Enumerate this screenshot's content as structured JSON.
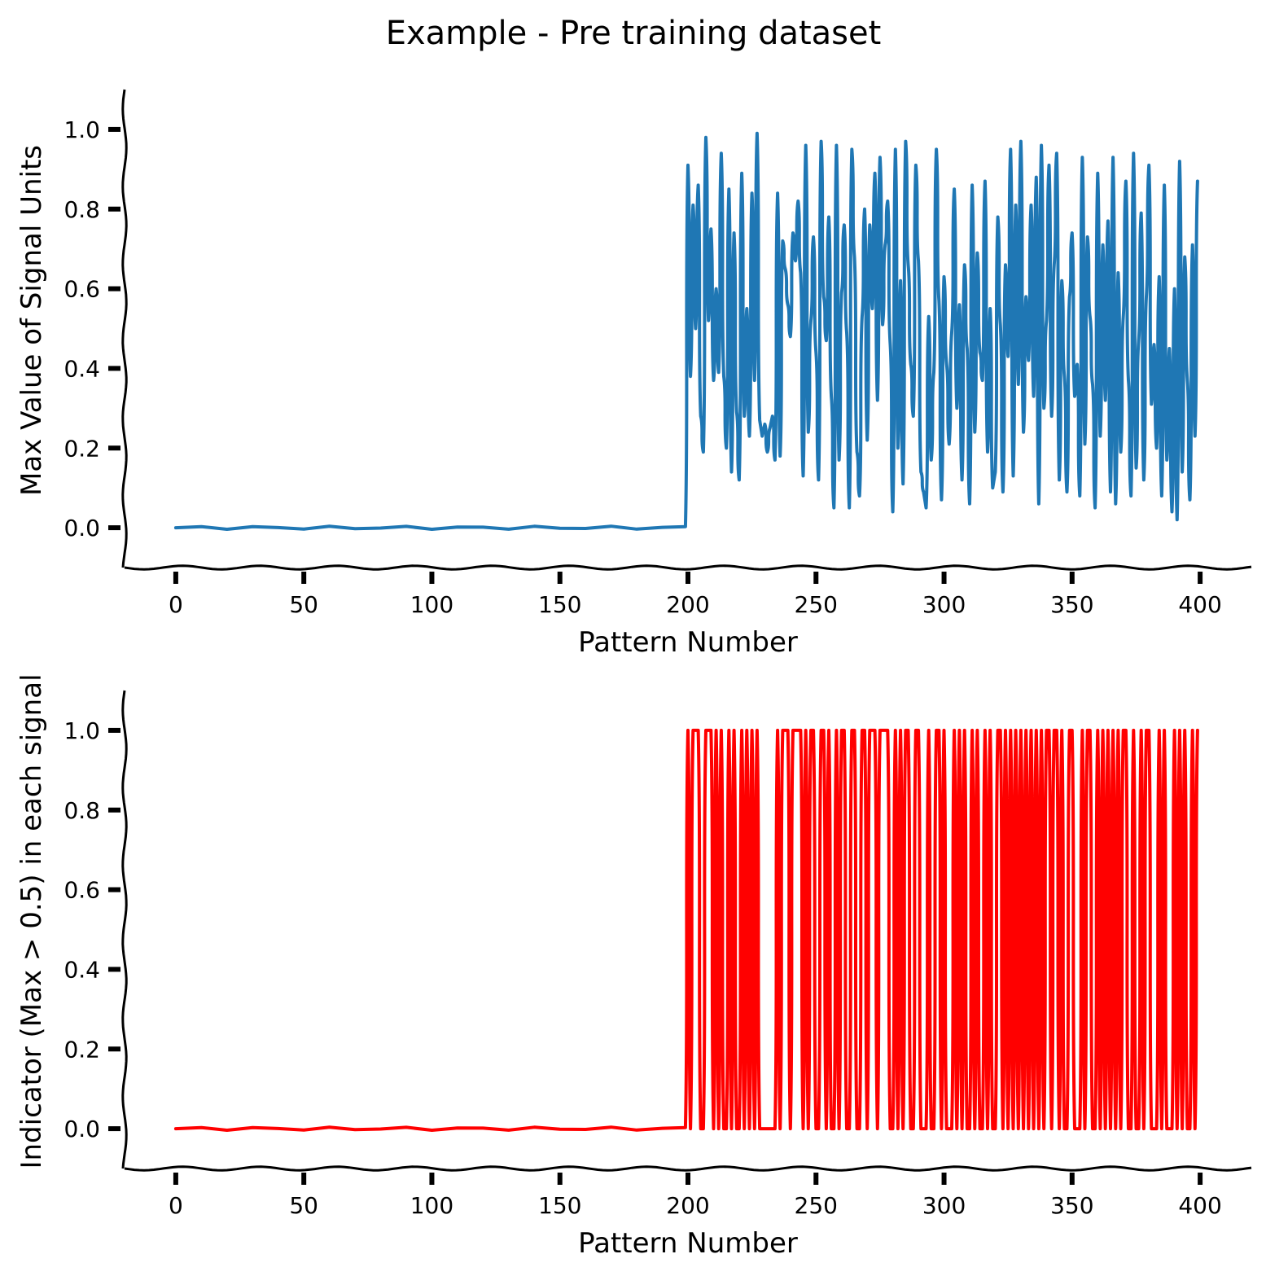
{
  "figure": {
    "title": "Example - Pre training dataset"
  },
  "chart_data": [
    {
      "type": "line",
      "title": "",
      "xlabel": "Pattern Number",
      "ylabel": "Max Value of Signal Units",
      "xlim": [
        -20,
        420
      ],
      "ylim": [
        -0.1,
        1.1
      ],
      "xticks": [
        0,
        50,
        100,
        150,
        200,
        250,
        300,
        350,
        400
      ],
      "yticks": [
        0.0,
        0.2,
        0.4,
        0.6,
        0.8,
        1.0
      ],
      "grid": false,
      "style": "xkcd",
      "series": [
        {
          "color": "#1f77b4",
          "x": [
            0,
            10,
            20,
            30,
            40,
            50,
            60,
            70,
            80,
            90,
            100,
            110,
            120,
            130,
            140,
            150,
            160,
            170,
            180,
            190,
            199,
            200,
            201,
            202,
            203,
            204,
            205,
            206,
            207,
            208,
            209,
            210,
            211,
            212,
            213,
            214,
            215,
            216,
            217,
            218,
            219,
            220,
            221,
            222,
            223,
            224,
            225,
            226,
            227,
            228,
            229,
            230,
            231,
            232,
            233,
            234,
            235,
            236,
            237,
            238,
            239,
            240,
            241,
            242,
            243,
            244,
            245,
            246,
            247,
            248,
            249,
            250,
            251,
            252,
            253,
            254,
            255,
            256,
            257,
            258,
            259,
            260,
            261,
            262,
            263,
            264,
            265,
            266,
            267,
            268,
            269,
            270,
            271,
            272,
            273,
            274,
            275,
            276,
            277,
            278,
            279,
            280,
            281,
            282,
            283,
            284,
            285,
            286,
            287,
            288,
            289,
            290,
            291,
            292,
            293,
            294,
            295,
            296,
            297,
            298,
            299,
            300,
            301,
            302,
            303,
            304,
            305,
            306,
            307,
            308,
            309,
            310,
            311,
            312,
            313,
            314,
            315,
            316,
            317,
            318,
            319,
            320,
            321,
            322,
            323,
            324,
            325,
            326,
            327,
            328,
            329,
            330,
            331,
            332,
            333,
            334,
            335,
            336,
            337,
            338,
            339,
            340,
            341,
            342,
            343,
            344,
            345,
            346,
            347,
            348,
            349,
            350,
            351,
            352,
            353,
            354,
            355,
            356,
            357,
            358,
            359,
            360,
            361,
            362,
            363,
            364,
            365,
            366,
            367,
            368,
            369,
            370,
            371,
            372,
            373,
            374,
            375,
            376,
            377,
            378,
            379,
            380,
            381,
            382,
            383,
            384,
            385,
            386,
            387,
            388,
            389,
            390,
            391,
            392,
            393,
            394,
            395,
            396,
            397,
            398,
            399
          ],
          "y": [
            0,
            0,
            0,
            0,
            0,
            0,
            0,
            0,
            0,
            0,
            0,
            0,
            0,
            0,
            0,
            0,
            0,
            0,
            0,
            0,
            0,
            0.91,
            0.38,
            0.81,
            0.5,
            0.86,
            0.28,
            0.19,
            0.98,
            0.52,
            0.75,
            0.37,
            0.6,
            0.39,
            0.94,
            0.38,
            0.2,
            0.85,
            0.14,
            0.74,
            0.29,
            0.12,
            0.89,
            0.28,
            0.55,
            0.23,
            0.84,
            0.37,
            0.99,
            0.27,
            0.23,
            0.26,
            0.19,
            0.25,
            0.28,
            0.17,
            0.84,
            0.18,
            0.72,
            0.65,
            0.56,
            0.48,
            0.74,
            0.67,
            0.82,
            0.64,
            0.13,
            0.96,
            0.24,
            0.52,
            0.73,
            0.44,
            0.12,
            0.97,
            0.58,
            0.47,
            0.78,
            0.33,
            0.05,
            0.96,
            0.17,
            0.59,
            0.76,
            0.49,
            0.05,
            0.95,
            0.68,
            0.19,
            0.08,
            0.53,
            0.8,
            0.22,
            0.76,
            0.55,
            0.89,
            0.32,
            0.93,
            0.51,
            0.71,
            0.82,
            0.46,
            0.04,
            0.95,
            0.2,
            0.62,
            0.11,
            0.97,
            0.66,
            0.41,
            0.28,
            0.91,
            0.67,
            0.14,
            0.09,
            0.05,
            0.53,
            0.17,
            0.39,
            0.95,
            0.57,
            0.07,
            0.63,
            0.41,
            0.21,
            0.49,
            0.85,
            0.3,
            0.56,
            0.12,
            0.66,
            0.45,
            0.06,
            0.86,
            0.24,
            0.69,
            0.44,
            0.37,
            0.87,
            0.19,
            0.55,
            0.1,
            0.14,
            0.78,
            0.51,
            0.09,
            0.66,
            0.43,
            0.95,
            0.13,
            0.81,
            0.36,
            0.97,
            0.24,
            0.58,
            0.42,
            0.81,
            0.33,
            0.88,
            0.06,
            0.96,
            0.3,
            0.52,
            0.91,
            0.28,
            0.66,
            0.94,
            0.12,
            0.62,
            0.38,
            0.09,
            0.58,
            0.74,
            0.33,
            0.41,
            0.08,
            0.93,
            0.21,
            0.73,
            0.53,
            0.36,
            0.05,
            0.89,
            0.23,
            0.71,
            0.32,
            0.77,
            0.09,
            0.93,
            0.06,
            0.64,
            0.19,
            0.53,
            0.87,
            0.37,
            0.08,
            0.94,
            0.15,
            0.47,
            0.79,
            0.12,
            0.58,
            0.91,
            0.31,
            0.46,
            0.2,
            0.63,
            0.08,
            0.86,
            0.17,
            0.45,
            0.04,
            0.6,
            0.02,
            0.92,
            0.14,
            0.68,
            0.37,
            0.07,
            0.71,
            0.23,
            0.87
          ]
        }
      ]
    },
    {
      "type": "line",
      "title": "",
      "xlabel": "Pattern Number",
      "ylabel": "Indicator (Max > 0.5) in each signal",
      "xlim": [
        -20,
        420
      ],
      "ylim": [
        -0.1,
        1.1
      ],
      "xticks": [
        0,
        50,
        100,
        150,
        200,
        250,
        300,
        350,
        400
      ],
      "yticks": [
        0.0,
        0.2,
        0.4,
        0.6,
        0.8,
        1.0
      ],
      "grid": false,
      "style": "xkcd",
      "series": [
        {
          "color": "#ff0000",
          "x": [
            0,
            10,
            20,
            30,
            40,
            50,
            60,
            70,
            80,
            90,
            100,
            110,
            120,
            130,
            140,
            150,
            160,
            170,
            180,
            190,
            199,
            200,
            201,
            202,
            203,
            204,
            205,
            206,
            207,
            208,
            209,
            210,
            211,
            212,
            213,
            214,
            215,
            216,
            217,
            218,
            219,
            220,
            221,
            222,
            223,
            224,
            225,
            226,
            227,
            228,
            229,
            230,
            231,
            232,
            233,
            234,
            235,
            236,
            237,
            238,
            239,
            240,
            241,
            242,
            243,
            244,
            245,
            246,
            247,
            248,
            249,
            250,
            251,
            252,
            253,
            254,
            255,
            256,
            257,
            258,
            259,
            260,
            261,
            262,
            263,
            264,
            265,
            266,
            267,
            268,
            269,
            270,
            271,
            272,
            273,
            274,
            275,
            276,
            277,
            278,
            279,
            280,
            281,
            282,
            283,
            284,
            285,
            286,
            287,
            288,
            289,
            290,
            291,
            292,
            293,
            294,
            295,
            296,
            297,
            298,
            299,
            300,
            301,
            302,
            303,
            304,
            305,
            306,
            307,
            308,
            309,
            310,
            311,
            312,
            313,
            314,
            315,
            316,
            317,
            318,
            319,
            320,
            321,
            322,
            323,
            324,
            325,
            326,
            327,
            328,
            329,
            330,
            331,
            332,
            333,
            334,
            335,
            336,
            337,
            338,
            339,
            340,
            341,
            342,
            343,
            344,
            345,
            346,
            347,
            348,
            349,
            350,
            351,
            352,
            353,
            354,
            355,
            356,
            357,
            358,
            359,
            360,
            361,
            362,
            363,
            364,
            365,
            366,
            367,
            368,
            369,
            370,
            371,
            372,
            373,
            374,
            375,
            376,
            377,
            378,
            379,
            380,
            381,
            382,
            383,
            384,
            385,
            386,
            387,
            388,
            389,
            390,
            391,
            392,
            393,
            394,
            395,
            396,
            397,
            398,
            399
          ],
          "y": [
            0,
            0,
            0,
            0,
            0,
            0,
            0,
            0,
            0,
            0,
            0,
            0,
            0,
            0,
            0,
            0,
            0,
            0,
            0,
            0,
            0,
            1,
            0,
            1,
            1,
            1,
            0,
            0,
            1,
            1,
            1,
            0,
            1,
            0,
            1,
            0,
            0,
            1,
            0,
            1,
            0,
            0,
            1,
            0,
            1,
            0,
            1,
            0,
            1,
            0,
            0,
            0,
            0,
            0,
            0,
            0,
            1,
            0,
            1,
            1,
            1,
            0,
            1,
            1,
            1,
            1,
            0,
            1,
            0,
            1,
            1,
            0,
            0,
            1,
            1,
            0,
            1,
            0,
            0,
            1,
            0,
            1,
            1,
            0,
            0,
            1,
            1,
            0,
            0,
            1,
            1,
            0,
            1,
            1,
            1,
            0,
            1,
            1,
            1,
            1,
            0,
            0,
            1,
            0,
            1,
            0,
            1,
            1,
            0,
            0,
            1,
            1,
            0,
            0,
            0,
            1,
            0,
            0,
            1,
            1,
            0,
            1,
            0,
            0,
            0,
            1,
            0,
            1,
            0,
            1,
            0,
            0,
            1,
            0,
            1,
            0,
            0,
            1,
            0,
            1,
            0,
            0,
            1,
            1,
            0,
            1,
            0,
            1,
            0,
            1,
            0,
            1,
            0,
            1,
            0,
            1,
            0,
            1,
            0,
            1,
            0,
            1,
            1,
            0,
            1,
            1,
            0,
            1,
            0,
            0,
            1,
            1,
            0,
            0,
            0,
            1,
            0,
            1,
            1,
            0,
            0,
            1,
            0,
            1,
            0,
            1,
            0,
            1,
            0,
            1,
            0,
            1,
            1,
            0,
            0,
            1,
            0,
            0,
            1,
            0,
            1,
            1,
            0,
            0,
            0,
            1,
            0,
            1,
            0,
            0,
            0,
            1,
            0,
            1,
            0,
            1,
            0,
            0,
            1,
            0,
            1
          ]
        }
      ]
    }
  ]
}
